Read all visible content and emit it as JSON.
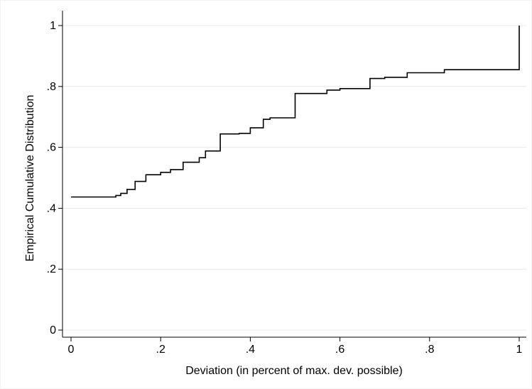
{
  "chart_data": {
    "type": "line",
    "step": "post",
    "xlabel": "Deviation (in percent of max. dev. possible)",
    "ylabel": "Empirical Cumulative Distribution",
    "xlim": [
      0,
      1
    ],
    "ylim": [
      0,
      1
    ],
    "x_ticks": [
      0,
      0.2,
      0.4,
      0.6,
      0.8,
      1
    ],
    "x_tick_labels": [
      "0",
      ".2",
      ".4",
      ".6",
      ".8",
      "1"
    ],
    "y_ticks": [
      0,
      0.2,
      0.4,
      0.6,
      0.8,
      1
    ],
    "y_tick_labels": [
      "0",
      ".2",
      ".4",
      ".6",
      ".8",
      "1"
    ],
    "grid": "horizontal",
    "line_color": "#000000",
    "series": [
      {
        "x": [
          0,
          0.1,
          0.111,
          0.125,
          0.143,
          0.167,
          0.2,
          0.222,
          0.25,
          0.286,
          0.3,
          0.333,
          0.375,
          0.4,
          0.429,
          0.444,
          0.5,
          0.571,
          0.6,
          0.667,
          0.7,
          0.75,
          0.833,
          1,
          1
        ],
        "y": [
          0.437,
          0.442,
          0.449,
          0.462,
          0.488,
          0.51,
          0.518,
          0.527,
          0.551,
          0.566,
          0.588,
          0.644,
          0.646,
          0.664,
          0.692,
          0.697,
          0.777,
          0.788,
          0.793,
          0.826,
          0.83,
          0.845,
          0.855,
          0.855,
          1
        ]
      }
    ]
  }
}
